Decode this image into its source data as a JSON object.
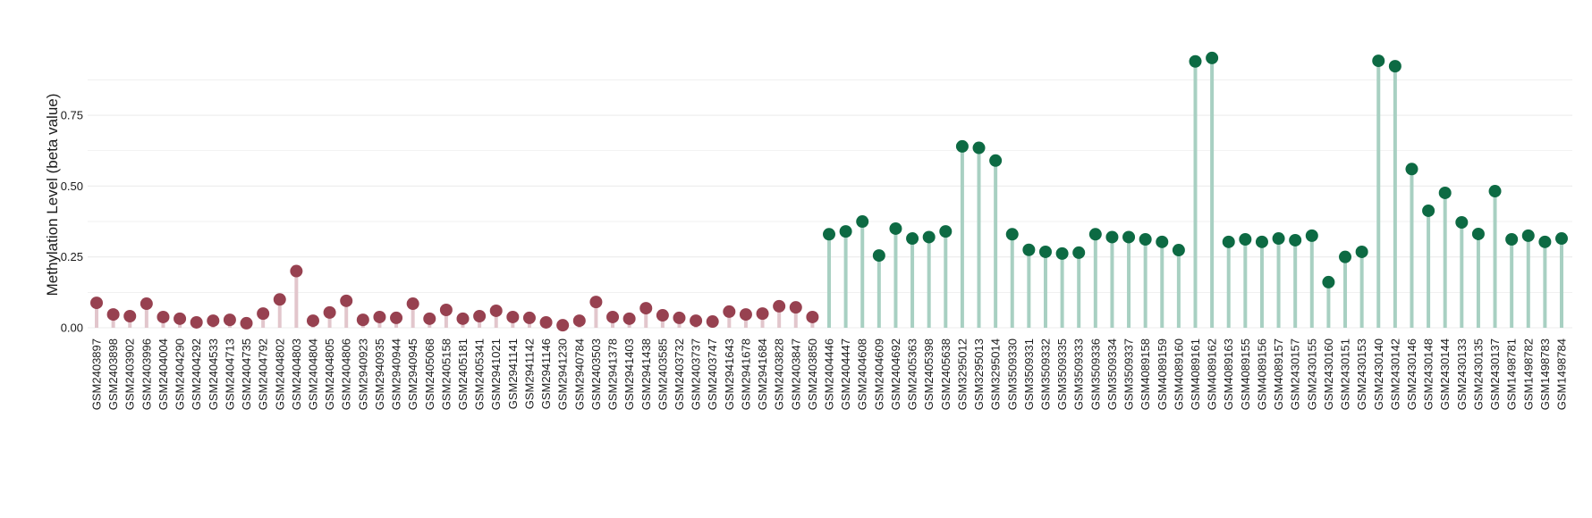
{
  "chart_data": {
    "type": "lollipop",
    "title": "",
    "xlabel": "",
    "ylabel": "Methylation Level (beta value)",
    "ylim": [
      0,
      0.97
    ],
    "yticks": [
      "0.00",
      "0.25",
      "0.50",
      "0.75"
    ],
    "ytick_values": [
      0,
      0.25,
      0.5,
      0.75
    ],
    "grid": true,
    "legend": "none",
    "colors": {
      "group1_dot": "#974150",
      "group1_stem": "#e2c6cc",
      "group2_dot": "#0d6a43",
      "group2_stem": "#a8d0c2",
      "grid": "#ececec"
    },
    "series": [
      {
        "categories": [
          "GSM2403897",
          "GSM2403898",
          "GSM2403902",
          "GSM2403996",
          "GSM2404004",
          "GSM2404290",
          "GSM2404292",
          "GSM2404533",
          "GSM2404713",
          "GSM2404735",
          "GSM2404792",
          "GSM2404802",
          "GSM2404803",
          "GSM2404804",
          "GSM2404805",
          "GSM2404806",
          "GSM2940923",
          "GSM2940935",
          "GSM2940944",
          "GSM2940945",
          "GSM2405068",
          "GSM2405158",
          "GSM2405181",
          "GSM2405341",
          "GSM2941021",
          "GSM2941141",
          "GSM2941142",
          "GSM2941146",
          "GSM2941230",
          "GSM2940784",
          "GSM2403503",
          "GSM2941378",
          "GSM2941403",
          "GSM2941438",
          "GSM2403585",
          "GSM2403732",
          "GSM2403737",
          "GSM2403747",
          "GSM2941643",
          "GSM2941678",
          "GSM2941684",
          "GSM2403828",
          "GSM2403847",
          "GSM2403850"
        ],
        "values": [
          0.088,
          0.047,
          0.041,
          0.085,
          0.038,
          0.032,
          0.019,
          0.025,
          0.028,
          0.016,
          0.05,
          0.1,
          0.2,
          0.025,
          0.054,
          0.095,
          0.028,
          0.038,
          0.035,
          0.085,
          0.032,
          0.063,
          0.032,
          0.041,
          0.06,
          0.038,
          0.035,
          0.019,
          0.009,
          0.025,
          0.091,
          0.038,
          0.032,
          0.069,
          0.044,
          0.035,
          0.025,
          0.022,
          0.057,
          0.047,
          0.05,
          0.076,
          0.072,
          0.038
        ]
      },
      {
        "categories": [
          "GSM2404446",
          "GSM2404447",
          "GSM2404608",
          "GSM2404609",
          "GSM2404692",
          "GSM2405363",
          "GSM2405398",
          "GSM2405638",
          "GSM3295012",
          "GSM3295013",
          "GSM3295014",
          "GSM3509330",
          "GSM3509331",
          "GSM3509332",
          "GSM3509335",
          "GSM3509333",
          "GSM3509336",
          "GSM3509334",
          "GSM3509337",
          "GSM4089158",
          "GSM4089159",
          "GSM4089160",
          "GSM4089161",
          "GSM4089162",
          "GSM4089163",
          "GSM4089155",
          "GSM4089156",
          "GSM4089157",
          "GSM2430157",
          "GSM2430155",
          "GSM2430160",
          "GSM2430151",
          "GSM2430153",
          "GSM2430140",
          "GSM2430142",
          "GSM2430146",
          "GSM2430148",
          "GSM2430144",
          "GSM2430133",
          "GSM2430135",
          "GSM2430137",
          "GSM1498781",
          "GSM1498782",
          "GSM1498783",
          "GSM1498784"
        ],
        "values": [
          0.33,
          0.34,
          0.375,
          0.255,
          0.35,
          0.315,
          0.32,
          0.34,
          0.64,
          0.635,
          0.59,
          0.33,
          0.275,
          0.268,
          0.262,
          0.265,
          0.33,
          0.32,
          0.32,
          0.312,
          0.303,
          0.274,
          0.94,
          0.952,
          0.303,
          0.312,
          0.303,
          0.315,
          0.309,
          0.325,
          0.161,
          0.25,
          0.268,
          0.942,
          0.923,
          0.56,
          0.413,
          0.476,
          0.372,
          0.331,
          0.482,
          0.312,
          0.325,
          0.303,
          0.315
        ]
      }
    ]
  }
}
